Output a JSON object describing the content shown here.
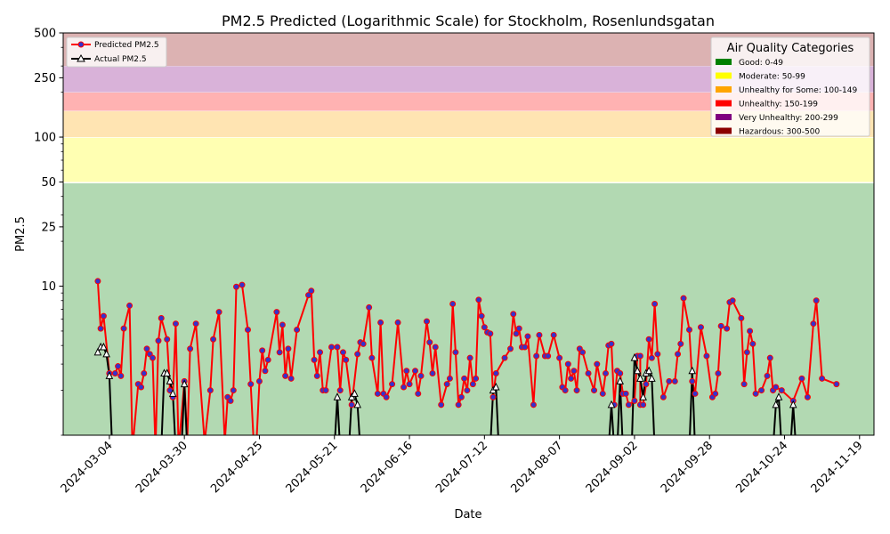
{
  "chart_data": {
    "type": "line",
    "title": "PM2.5 Predicted (Logarithmic Scale) for Stockholm, Rosenlundsgatan",
    "xlabel": "Date",
    "ylabel": "PM2.5",
    "y_scale": "log",
    "ylim": [
      1,
      500
    ],
    "xlim": [
      "2024-02-17",
      "2024-11-24"
    ],
    "x_ticks": [
      "2024-03-04",
      "2024-03-30",
      "2024-04-25",
      "2024-05-21",
      "2024-06-16",
      "2024-07-12",
      "2024-08-07",
      "2024-09-02",
      "2024-09-28",
      "2024-10-24",
      "2024-11-19"
    ],
    "y_ticks": [
      10,
      25,
      50,
      100,
      250,
      500
    ],
    "grid": false,
    "legend": {
      "placement": "upper-left",
      "entries": [
        {
          "label": "Predicted PM2.5",
          "color": "#ff0000",
          "marker": "circle",
          "marker_color": "#3333cc"
        },
        {
          "label": "Actual PM2.5",
          "color": "#000000",
          "marker": "triangle",
          "marker_color": "#ffffff"
        }
      ]
    },
    "categories_legend": {
      "title": "Air Quality Categories",
      "placement": "upper-right",
      "items": [
        {
          "label": "Good: 0-49",
          "color": "#008000"
        },
        {
          "label": "Moderate: 50-99",
          "color": "#ffff00"
        },
        {
          "label": "Unhealthy for Some: 100-149",
          "color": "#ffa500"
        },
        {
          "label": "Unhealthy: 150-199",
          "color": "#ff0000"
        },
        {
          "label": "Very Unhealthy: 200-299",
          "color": "#800080"
        },
        {
          "label": "Hazardous: 300-500",
          "color": "#8b0000"
        }
      ]
    },
    "bands": [
      {
        "from": 0,
        "to": 49,
        "color": "#008000"
      },
      {
        "from": 50,
        "to": 99,
        "color": "#ffff00"
      },
      {
        "from": 100,
        "to": 149,
        "color": "#ffa500"
      },
      {
        "from": 150,
        "to": 199,
        "color": "#ff0000"
      },
      {
        "from": 200,
        "to": 299,
        "color": "#800080"
      },
      {
        "from": 300,
        "to": 500,
        "color": "#8b0000"
      }
    ],
    "series": [
      {
        "name": "Predicted PM2.5",
        "color": "#ff0000",
        "points": [
          [
            "2024-02-29",
            10.8
          ],
          [
            "2024-03-01",
            5.2
          ],
          [
            "2024-03-02",
            6.3
          ],
          [
            "2024-03-04",
            2.6
          ],
          [
            "2024-03-06",
            2.6
          ],
          [
            "2024-03-07",
            2.9
          ],
          [
            "2024-03-08",
            2.5
          ],
          [
            "2024-03-09",
            5.2
          ],
          [
            "2024-03-11",
            7.4
          ],
          [
            "2024-03-12",
            0.8
          ],
          [
            "2024-03-14",
            2.2
          ],
          [
            "2024-03-15",
            2.1
          ],
          [
            "2024-03-16",
            2.6
          ],
          [
            "2024-03-17",
            3.8
          ],
          [
            "2024-03-18",
            3.5
          ],
          [
            "2024-03-19",
            3.3
          ],
          [
            "2024-03-20",
            0.8
          ],
          [
            "2024-03-21",
            4.3
          ],
          [
            "2024-03-22",
            6.1
          ],
          [
            "2024-03-24",
            4.4
          ],
          [
            "2024-03-25",
            2.0
          ],
          [
            "2024-03-26",
            1.8
          ],
          [
            "2024-03-27",
            5.6
          ],
          [
            "2024-03-28",
            0.8
          ],
          [
            "2024-03-30",
            2.3
          ],
          [
            "2024-03-31",
            0.9
          ],
          [
            "2024-04-01",
            3.8
          ],
          [
            "2024-04-03",
            5.6
          ],
          [
            "2024-04-06",
            0.9
          ],
          [
            "2024-04-08",
            2.0
          ],
          [
            "2024-04-09",
            4.4
          ],
          [
            "2024-04-11",
            6.7
          ],
          [
            "2024-04-13",
            0.9
          ],
          [
            "2024-04-14",
            1.8
          ],
          [
            "2024-04-15",
            1.7
          ],
          [
            "2024-04-16",
            2.0
          ],
          [
            "2024-04-17",
            9.9
          ],
          [
            "2024-04-19",
            10.2
          ],
          [
            "2024-04-21",
            5.1
          ],
          [
            "2024-04-22",
            2.2
          ],
          [
            "2024-04-23",
            0.9
          ],
          [
            "2024-04-24",
            0.9
          ],
          [
            "2024-04-25",
            2.3
          ],
          [
            "2024-04-26",
            3.7
          ],
          [
            "2024-04-27",
            2.7
          ],
          [
            "2024-04-28",
            3.2
          ],
          [
            "2024-05-01",
            6.7
          ],
          [
            "2024-05-02",
            3.6
          ],
          [
            "2024-05-03",
            5.5
          ],
          [
            "2024-05-04",
            2.5
          ],
          [
            "2024-05-05",
            3.8
          ],
          [
            "2024-05-06",
            2.4
          ],
          [
            "2024-05-08",
            5.1
          ],
          [
            "2024-05-12",
            8.7
          ],
          [
            "2024-05-13",
            9.3
          ],
          [
            "2024-05-14",
            3.2
          ],
          [
            "2024-05-15",
            2.5
          ],
          [
            "2024-05-16",
            3.6
          ],
          [
            "2024-05-17",
            2.0
          ],
          [
            "2024-05-18",
            2.0
          ],
          [
            "2024-05-20",
            3.9
          ],
          [
            "2024-05-22",
            3.9
          ],
          [
            "2024-05-23",
            2.0
          ],
          [
            "2024-05-24",
            3.6
          ],
          [
            "2024-05-25",
            3.2
          ],
          [
            "2024-05-27",
            1.6
          ],
          [
            "2024-05-29",
            3.5
          ],
          [
            "2024-05-30",
            4.2
          ],
          [
            "2024-05-31",
            4.1
          ],
          [
            "2024-06-02",
            7.2
          ],
          [
            "2024-06-03",
            3.3
          ],
          [
            "2024-06-05",
            1.9
          ],
          [
            "2024-06-06",
            5.7
          ],
          [
            "2024-06-07",
            1.9
          ],
          [
            "2024-06-08",
            1.8
          ],
          [
            "2024-06-10",
            2.2
          ],
          [
            "2024-06-12",
            5.7
          ],
          [
            "2024-06-14",
            2.1
          ],
          [
            "2024-06-15",
            2.7
          ],
          [
            "2024-06-16",
            2.2
          ],
          [
            "2024-06-18",
            2.7
          ],
          [
            "2024-06-19",
            1.9
          ],
          [
            "2024-06-20",
            2.5
          ],
          [
            "2024-06-22",
            5.8
          ],
          [
            "2024-06-23",
            4.2
          ],
          [
            "2024-06-24",
            2.6
          ],
          [
            "2024-06-25",
            3.9
          ],
          [
            "2024-06-27",
            1.6
          ],
          [
            "2024-06-29",
            2.2
          ],
          [
            "2024-06-30",
            2.4
          ],
          [
            "2024-07-01",
            7.6
          ],
          [
            "2024-07-02",
            3.6
          ],
          [
            "2024-07-03",
            1.6
          ],
          [
            "2024-07-04",
            1.8
          ],
          [
            "2024-07-05",
            2.4
          ],
          [
            "2024-07-06",
            2.0
          ],
          [
            "2024-07-07",
            3.3
          ],
          [
            "2024-07-08",
            2.2
          ],
          [
            "2024-07-09",
            2.4
          ],
          [
            "2024-07-10",
            8.1
          ],
          [
            "2024-07-11",
            6.3
          ],
          [
            "2024-07-12",
            5.3
          ],
          [
            "2024-07-13",
            4.9
          ],
          [
            "2024-07-14",
            4.8
          ],
          [
            "2024-07-15",
            1.8
          ],
          [
            "2024-07-16",
            2.6
          ],
          [
            "2024-07-19",
            3.3
          ],
          [
            "2024-07-21",
            3.8
          ],
          [
            "2024-07-22",
            6.5
          ],
          [
            "2024-07-23",
            4.8
          ],
          [
            "2024-07-24",
            5.2
          ],
          [
            "2024-07-25",
            3.9
          ],
          [
            "2024-07-26",
            3.9
          ],
          [
            "2024-07-27",
            4.6
          ],
          [
            "2024-07-29",
            1.6
          ],
          [
            "2024-07-30",
            3.4
          ],
          [
            "2024-07-31",
            4.7
          ],
          [
            "2024-08-02",
            3.4
          ],
          [
            "2024-08-03",
            3.4
          ],
          [
            "2024-08-05",
            4.7
          ],
          [
            "2024-08-07",
            3.3
          ],
          [
            "2024-08-08",
            2.1
          ],
          [
            "2024-08-09",
            2.0
          ],
          [
            "2024-08-10",
            3.0
          ],
          [
            "2024-08-11",
            2.4
          ],
          [
            "2024-08-12",
            2.7
          ],
          [
            "2024-08-13",
            2.0
          ],
          [
            "2024-08-14",
            3.8
          ],
          [
            "2024-08-15",
            3.6
          ],
          [
            "2024-08-17",
            2.6
          ],
          [
            "2024-08-19",
            2.0
          ],
          [
            "2024-08-20",
            3.0
          ],
          [
            "2024-08-22",
            1.9
          ],
          [
            "2024-08-23",
            2.6
          ],
          [
            "2024-08-24",
            4.0
          ],
          [
            "2024-08-25",
            4.1
          ],
          [
            "2024-08-26",
            1.6
          ],
          [
            "2024-08-27",
            2.7
          ],
          [
            "2024-08-28",
            2.6
          ],
          [
            "2024-08-29",
            1.9
          ],
          [
            "2024-08-30",
            1.9
          ],
          [
            "2024-08-31",
            1.6
          ],
          [
            "2024-09-02",
            1.7
          ],
          [
            "2024-09-03",
            3.4
          ],
          [
            "2024-09-04",
            3.4
          ],
          [
            "2024-09-04",
            1.6
          ],
          [
            "2024-09-05",
            1.6
          ],
          [
            "2024-09-06",
            2.2
          ],
          [
            "2024-09-07",
            4.4
          ],
          [
            "2024-09-08",
            3.3
          ],
          [
            "2024-09-09",
            7.6
          ],
          [
            "2024-09-10",
            3.5
          ],
          [
            "2024-09-12",
            1.8
          ],
          [
            "2024-09-14",
            2.3
          ],
          [
            "2024-09-16",
            2.3
          ],
          [
            "2024-09-17",
            3.5
          ],
          [
            "2024-09-18",
            4.1
          ],
          [
            "2024-09-19",
            8.3
          ],
          [
            "2024-09-21",
            5.1
          ],
          [
            "2024-09-22",
            2.3
          ],
          [
            "2024-09-23",
            1.9
          ],
          [
            "2024-09-25",
            5.3
          ],
          [
            "2024-09-27",
            3.4
          ],
          [
            "2024-09-29",
            1.8
          ],
          [
            "2024-09-30",
            1.9
          ],
          [
            "2024-10-01",
            2.6
          ],
          [
            "2024-10-02",
            5.4
          ],
          [
            "2024-10-04",
            5.2
          ],
          [
            "2024-10-05",
            7.8
          ],
          [
            "2024-10-06",
            8.0
          ],
          [
            "2024-10-09",
            6.1
          ],
          [
            "2024-10-10",
            2.2
          ],
          [
            "2024-10-11",
            3.6
          ],
          [
            "2024-10-12",
            5.0
          ],
          [
            "2024-10-13",
            4.1
          ],
          [
            "2024-10-14",
            1.9
          ],
          [
            "2024-10-16",
            2.0
          ],
          [
            "2024-10-18",
            2.5
          ],
          [
            "2024-10-19",
            3.3
          ],
          [
            "2024-10-20",
            2.0
          ],
          [
            "2024-10-21",
            2.1
          ],
          [
            "2024-10-23",
            2.0
          ],
          [
            "2024-10-27",
            1.7
          ],
          [
            "2024-10-30",
            2.4
          ],
          [
            "2024-11-01",
            1.8
          ],
          [
            "2024-11-03",
            5.6
          ],
          [
            "2024-11-04",
            8.0
          ],
          [
            "2024-11-06",
            2.4
          ],
          [
            "2024-11-11",
            2.2
          ]
        ]
      },
      {
        "name": "Actual PM2.5",
        "color": "#000000",
        "points": [
          [
            "2024-02-29",
            3.6
          ],
          [
            "2024-03-01",
            3.9
          ],
          [
            "2024-03-02",
            3.9
          ],
          [
            "2024-03-03",
            3.5
          ],
          [
            "2024-03-04",
            2.5
          ],
          [
            "2024-03-05",
            0.8
          ],
          [
            "2024-03-22",
            0.8
          ],
          [
            "2024-03-23",
            2.6
          ],
          [
            "2024-03-24",
            2.6
          ],
          [
            "2024-03-25",
            2.3
          ],
          [
            "2024-03-26",
            1.9
          ],
          [
            "2024-03-27",
            0.8
          ],
          [
            "2024-03-29",
            0.8
          ],
          [
            "2024-03-30",
            2.2
          ],
          [
            "2024-03-31",
            0.8
          ],
          [
            "2024-04-22",
            0.9
          ],
          [
            "2024-04-23",
            0.8
          ],
          [
            "2024-05-21",
            0.8
          ],
          [
            "2024-05-22",
            1.8
          ],
          [
            "2024-05-23",
            0.8
          ],
          [
            "2024-05-26",
            0.8
          ],
          [
            "2024-05-27",
            1.8
          ],
          [
            "2024-05-28",
            1.9
          ],
          [
            "2024-05-29",
            1.6
          ],
          [
            "2024-05-30",
            0.8
          ],
          [
            "2024-07-14",
            0.8
          ],
          [
            "2024-07-15",
            2.0
          ],
          [
            "2024-07-16",
            2.1
          ],
          [
            "2024-07-17",
            0.8
          ],
          [
            "2024-08-24",
            0.8
          ],
          [
            "2024-08-25",
            1.6
          ],
          [
            "2024-08-26",
            0.8
          ],
          [
            "2024-08-27",
            0.8
          ],
          [
            "2024-08-28",
            2.3
          ],
          [
            "2024-08-29",
            0.8
          ],
          [
            "2024-09-01",
            0.8
          ],
          [
            "2024-09-02",
            3.3
          ],
          [
            "2024-09-03",
            2.7
          ],
          [
            "2024-09-04",
            2.4
          ],
          [
            "2024-09-05",
            1.8
          ],
          [
            "2024-09-06",
            2.6
          ],
          [
            "2024-09-07",
            2.7
          ],
          [
            "2024-09-08",
            2.4
          ],
          [
            "2024-09-09",
            0.8
          ],
          [
            "2024-09-21",
            0.8
          ],
          [
            "2024-09-22",
            2.7
          ],
          [
            "2024-09-23",
            0.8
          ],
          [
            "2024-10-20",
            0.8
          ],
          [
            "2024-10-21",
            1.6
          ],
          [
            "2024-10-22",
            1.8
          ],
          [
            "2024-10-23",
            0.8
          ],
          [
            "2024-10-26",
            0.8
          ],
          [
            "2024-10-27",
            1.6
          ],
          [
            "2024-10-28",
            0.8
          ]
        ]
      }
    ]
  }
}
